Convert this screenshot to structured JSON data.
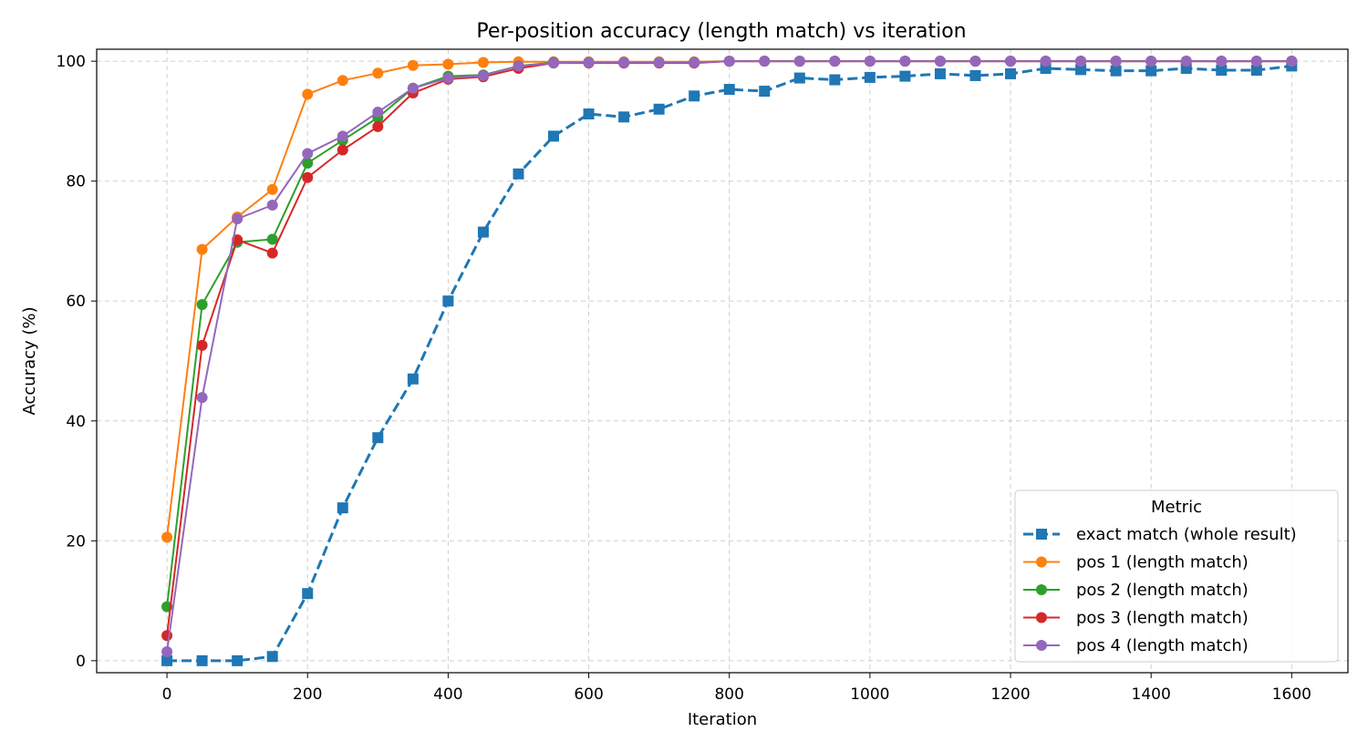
{
  "chart_data": {
    "type": "line",
    "title": "Per-position accuracy (length match) vs iteration",
    "xlabel": "Iteration",
    "ylabel": "Accuracy (%)",
    "xlim": [
      -100,
      1680
    ],
    "ylim": [
      -2,
      102
    ],
    "xticks": [
      0,
      200,
      400,
      600,
      800,
      1000,
      1200,
      1400,
      1600
    ],
    "yticks": [
      0,
      20,
      40,
      60,
      80,
      100
    ],
    "grid": true,
    "legend": {
      "title": "Metric",
      "placement": "lower-right"
    },
    "x": [
      0,
      50,
      100,
      150,
      200,
      250,
      300,
      350,
      400,
      450,
      500,
      550,
      600,
      650,
      700,
      750,
      800,
      850,
      900,
      950,
      1000,
      1050,
      1100,
      1150,
      1200,
      1250,
      1300,
      1350,
      1400,
      1450,
      1500,
      1550,
      1600
    ],
    "series": [
      {
        "name": "exact match (whole result)",
        "color": "#1f77b4",
        "marker": "square",
        "linestyle": "dashed",
        "values": [
          0,
          0,
          0,
          0.7,
          11.2,
          25.5,
          37.2,
          47,
          60,
          71.5,
          81.2,
          87.5,
          91.2,
          90.7,
          92,
          94.2,
          95.3,
          95,
          97.2,
          96.9,
          97.3,
          97.5,
          97.9,
          97.6,
          97.9,
          98.8,
          98.6,
          98.4,
          98.4,
          98.8,
          98.5,
          98.5,
          99.2
        ]
      },
      {
        "name": "pos 1 (length match)",
        "color": "#ff7f0e",
        "marker": "circle",
        "linestyle": "solid",
        "values": [
          20.6,
          68.6,
          74,
          78.6,
          94.5,
          96.8,
          98,
          99.3,
          99.5,
          99.8,
          99.9,
          99.9,
          99.9,
          99.9,
          99.9,
          99.9,
          100,
          100,
          100,
          100,
          100,
          100,
          100,
          100,
          100,
          100,
          100,
          100,
          100,
          100,
          100,
          100,
          100
        ]
      },
      {
        "name": "pos 2 (length match)",
        "color": "#2ca02c",
        "marker": "circle",
        "linestyle": "solid",
        "values": [
          9,
          59.4,
          69.8,
          70.3,
          83,
          86.8,
          90.6,
          95.5,
          97.5,
          97.7,
          99.2,
          99.8,
          99.8,
          99.8,
          99.8,
          99.8,
          100,
          100,
          100,
          100,
          100,
          100,
          100,
          100,
          100,
          100,
          100,
          100,
          100,
          100,
          100,
          100,
          100
        ]
      },
      {
        "name": "pos 3 (length match)",
        "color": "#d62728",
        "marker": "circle",
        "linestyle": "solid",
        "values": [
          4.2,
          52.6,
          70.2,
          68,
          80.6,
          85.2,
          89.1,
          94.7,
          97,
          97.4,
          98.8,
          99.7,
          99.7,
          99.7,
          99.7,
          99.7,
          100,
          100,
          100,
          100,
          100,
          100,
          100,
          100,
          100,
          100,
          100,
          100,
          100,
          100,
          100,
          100,
          100
        ]
      },
      {
        "name": "pos 4 (length match)",
        "color": "#9467bd",
        "marker": "circle",
        "linestyle": "solid",
        "values": [
          1.5,
          43.9,
          73.7,
          76,
          84.6,
          87.5,
          91.5,
          95.5,
          97.2,
          97.6,
          99.2,
          99.7,
          99.8,
          99.8,
          99.8,
          99.8,
          100,
          100,
          100,
          100,
          100,
          100,
          100,
          100,
          100,
          100,
          100,
          100,
          100,
          100,
          100,
          100,
          100
        ]
      }
    ]
  }
}
